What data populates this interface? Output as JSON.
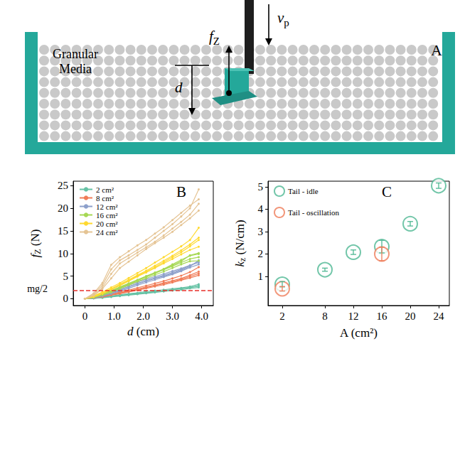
{
  "diagram": {
    "panel_label": "A",
    "medium_label": "Granular Media",
    "depth_label": "d",
    "force_label": {
      "symbol": "f",
      "subscript": "Z"
    },
    "velocity_label": {
      "symbol": "v",
      "subscript": "p"
    }
  },
  "chart_data": [
    {
      "type": "line",
      "panel_label": "B",
      "xlabel": {
        "symbol": "d",
        "unit": "(cm)"
      },
      "ylabel": {
        "symbol": "f",
        "subscript": "Z",
        "unit": "(N)"
      },
      "x": [
        0,
        0.3,
        0.6,
        0.9,
        1.2,
        1.5,
        1.8,
        2.1,
        2.4,
        2.7,
        3.0,
        3.3,
        3.6,
        3.9
      ],
      "xlim": [
        -0.4,
        4.4
      ],
      "xticks": [
        0,
        {
          "value": 1,
          "label": "1.0"
        },
        {
          "value": 2,
          "label": "2.0"
        },
        {
          "value": 3,
          "label": "3.0"
        },
        {
          "value": 4,
          "label": "4.0"
        }
      ],
      "ylim": [
        -1.5,
        26
      ],
      "yticks": [
        0,
        5,
        10,
        15,
        20,
        25
      ],
      "grid": false,
      "legend": "upper left",
      "marker": "circle",
      "reference_line": {
        "value": 1.9,
        "label": "mg/2",
        "color": "#e8312a",
        "line_style": "dashed"
      },
      "series": [
        {
          "name": "2 cm²",
          "color": "#66c2a5",
          "trials": [
            [
              0,
              0.1,
              0.3,
              0.5,
              0.8,
              1.0,
              1.2,
              1.4,
              1.6,
              1.8,
              2.0,
              2.2,
              2.5,
              2.8
            ],
            [
              0,
              0.2,
              0.4,
              0.6,
              0.9,
              1.1,
              1.3,
              1.6,
              1.8,
              2.0,
              2.2,
              2.4,
              2.7,
              3.2
            ],
            [
              0,
              0.1,
              0.2,
              0.4,
              0.6,
              0.8,
              1.0,
              1.2,
              1.4,
              1.6,
              1.8,
              2.0,
              2.3,
              2.5
            ],
            [
              0,
              0.1,
              0.3,
              0.5,
              0.7,
              0.9,
              1.1,
              1.3,
              1.5,
              1.8,
              2.0,
              2.3,
              2.5,
              2.9
            ]
          ]
        },
        {
          "name": "8 cm²",
          "color": "#f07c58",
          "trials": [
            [
              0,
              0.2,
              0.5,
              0.9,
              1.3,
              1.7,
              2.1,
              2.6,
              3.0,
              3.5,
              4.0,
              4.5,
              5.2,
              6.0
            ],
            [
              0,
              0.3,
              0.6,
              1.0,
              1.5,
              1.9,
              2.4,
              2.9,
              3.4,
              3.9,
              4.5,
              5.1,
              5.9,
              7.0
            ],
            [
              0,
              0.2,
              0.4,
              0.8,
              1.1,
              1.5,
              1.9,
              2.3,
              2.7,
              3.1,
              3.6,
              4.1,
              4.6,
              5.2
            ],
            [
              0,
              0.2,
              0.5,
              0.9,
              1.2,
              1.6,
              2.0,
              2.5,
              2.9,
              3.3,
              3.8,
              4.3,
              4.9,
              5.6
            ]
          ]
        },
        {
          "name": "12 cm²",
          "color": "#8da0cb",
          "trials": [
            [
              0,
              0.3,
              0.8,
              1.3,
              2.0,
              2.7,
              3.4,
              4.0,
              4.6,
              5.2,
              5.8,
              6.5,
              7.3,
              8.3
            ],
            [
              0,
              0.4,
              1.0,
              1.6,
              2.3,
              3.0,
              3.7,
              4.3,
              4.9,
              5.5,
              6.1,
              6.7,
              7.4,
              8.0
            ],
            [
              0,
              0.2,
              0.6,
              1.1,
              1.7,
              2.3,
              3.0,
              3.6,
              4.2,
              4.8,
              5.4,
              6.1,
              6.9,
              7.6
            ],
            [
              0,
              0.3,
              0.7,
              1.2,
              1.9,
              2.6,
              3.3,
              3.9,
              4.5,
              5.0,
              5.6,
              6.3,
              7.1,
              8.5
            ]
          ]
        },
        {
          "name": "16 cm²",
          "color": "#a6d854",
          "trials": [
            [
              0,
              0.3,
              0.9,
              1.6,
              2.4,
              3.2,
              4.0,
              4.8,
              5.6,
              6.5,
              7.4,
              8.3,
              9.6,
              10.1
            ],
            [
              0,
              0.4,
              1.1,
              1.8,
              2.6,
              3.4,
              4.2,
              5.0,
              5.8,
              6.6,
              7.6,
              8.6,
              9.5,
              9.9
            ],
            [
              0,
              0.3,
              0.8,
              1.4,
              2.2,
              3.0,
              3.8,
              4.5,
              5.3,
              6.0,
              6.8,
              7.6,
              8.3,
              8.4
            ],
            [
              0,
              0.3,
              1.0,
              1.7,
              2.5,
              3.3,
              4.1,
              4.9,
              5.7,
              6.4,
              7.2,
              8.0,
              8.8,
              9.2
            ]
          ]
        },
        {
          "name": "20 cm²",
          "color": "#ffd92f",
          "trials": [
            [
              0,
              0.5,
              1.3,
              2.2,
              3.2,
              4.2,
              5.2,
              6.2,
              7.3,
              8.4,
              9.5,
              10.7,
              12.0,
              13.5
            ],
            [
              0,
              0.6,
              1.5,
              2.5,
              3.5,
              4.6,
              5.7,
              6.8,
              8.0,
              9.2,
              10.4,
              11.6,
              13.0,
              15.7
            ],
            [
              0,
              0.4,
              1.1,
              2.0,
              2.9,
              3.9,
              4.9,
              5.8,
              6.8,
              7.8,
              8.8,
              9.8,
              10.8,
              11.5
            ],
            [
              0,
              0.5,
              1.2,
              2.1,
              3.1,
              4.0,
              5.0,
              6.0,
              7.0,
              8.1,
              9.2,
              10.3,
              11.6,
              13.0
            ]
          ]
        },
        {
          "name": "24 cm²",
          "color": "#e5c494",
          "trials": [
            [
              0,
              1.0,
              3.0,
              6.5,
              8.5,
              9.6,
              10.8,
              12.0,
              13.5,
              15.0,
              16.5,
              18.2,
              20.0,
              24.2
            ],
            [
              0,
              0.8,
              2.5,
              5.5,
              7.8,
              9.0,
              10.2,
              11.4,
              12.6,
              14.0,
              15.5,
              17.0,
              18.6,
              21.0
            ],
            [
              0,
              0.7,
              2.2,
              4.5,
              6.8,
              8.2,
              9.6,
              11.0,
              12.3,
              13.5,
              14.8,
              16.3,
              17.8,
              19.5
            ],
            [
              0,
              1.2,
              3.5,
              7.5,
              9.2,
              10.5,
              11.8,
              13.0,
              14.4,
              15.8,
              17.4,
              19.0,
              20.6,
              22.0
            ]
          ]
        }
      ]
    },
    {
      "type": "scatter",
      "panel_label": "C",
      "xlabel": "A (cm²)",
      "ylabel": {
        "symbol": "k",
        "subscript": "z",
        "unit": "(N/cm)"
      },
      "xlim": [
        0,
        25.5
      ],
      "xticks": [
        2,
        8,
        12,
        16,
        20,
        24
      ],
      "ylim": [
        -0.3,
        5.25
      ],
      "yticks": [
        1,
        2,
        3,
        4,
        5
      ],
      "grid": false,
      "legend": "upper left",
      "marker": "open circle",
      "series": [
        {
          "name": "Tail - idle",
          "color": "#4fb893",
          "x": [
            2,
            8,
            12,
            16,
            20,
            24
          ],
          "values": [
            0.65,
            1.3,
            2.08,
            2.33,
            3.35,
            5.05
          ],
          "errors": [
            0.12,
            0.07,
            0.1,
            0.28,
            0.1,
            0.12
          ]
        },
        {
          "name": "Tail - oscillation",
          "color": "#ef7d5a",
          "x": [
            2,
            16
          ],
          "values": [
            0.45,
            2.0
          ],
          "errors": [
            0.1,
            0.3
          ]
        }
      ]
    }
  ]
}
